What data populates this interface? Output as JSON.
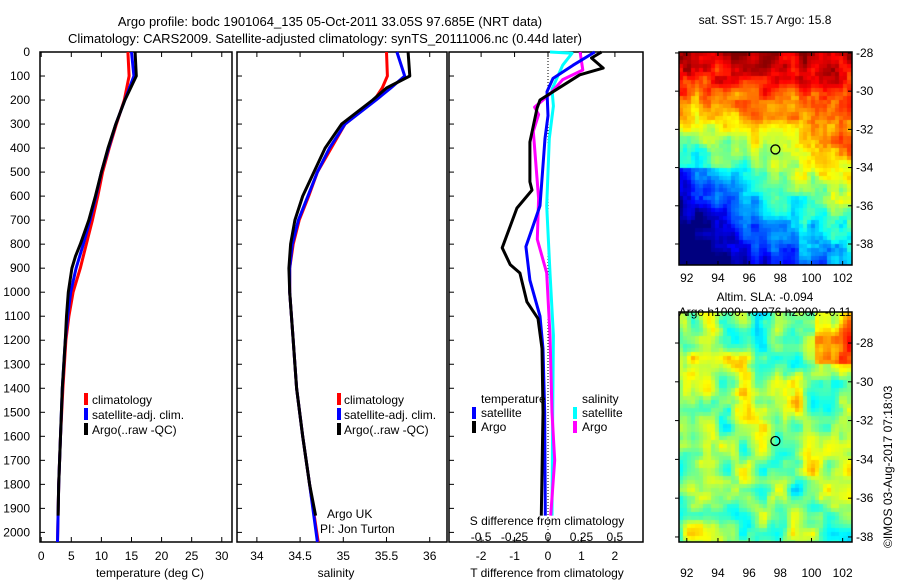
{
  "title": {
    "line1": "Argo profile: bodc 1901064_135 05-Oct-2011 33.05S 97.685E (NRT data)",
    "line2": "Climatology: CARS2009. Satellite-adjusted climatology: synTS_20111006.nc (0.44d later)"
  },
  "credit": "©IMOS 03-Aug-2017 07:18:03",
  "colors": {
    "climatology": "#ff0000",
    "satellite": "#0000ff",
    "argo": "#000000",
    "sal_satellite": "#00ffff",
    "sal_argo": "#ff00ff"
  },
  "chart_data": [
    {
      "type": "line",
      "panel": "temperature",
      "xlabel": "temperature (deg C)",
      "xticks": [
        0,
        5,
        10,
        15,
        20,
        25,
        30
      ],
      "xlim": [
        -0.2,
        31.7
      ],
      "ylabel": "depth",
      "yticks": [
        0,
        100,
        200,
        300,
        400,
        500,
        600,
        700,
        800,
        900,
        1000,
        1100,
        1200,
        1300,
        1400,
        1500,
        1600,
        1700,
        1800,
        1900,
        2000
      ],
      "ylim": [
        2040,
        0
      ],
      "legend": [
        "climatology",
        "satellite-adj. clim.",
        "Argo(..raw -QC)"
      ],
      "series": [
        {
          "name": "climatology",
          "depth": [
            0,
            100,
            200,
            300,
            400,
            500,
            600,
            700,
            800,
            900,
            1000,
            1100,
            1200,
            1400,
            1600,
            1800,
            2040
          ],
          "values": [
            14.4,
            14.6,
            13.8,
            12.5,
            11.3,
            10.2,
            9.4,
            8.5,
            7.5,
            6.5,
            5.3,
            4.6,
            4.1,
            3.6,
            3.2,
            2.9,
            2.7
          ]
        },
        {
          "name": "satellite-adj. clim.",
          "depth": [
            0,
            100,
            200,
            300,
            400,
            500,
            600,
            700,
            800,
            900,
            1000,
            1100,
            1200,
            1400,
            1600,
            1800,
            2040
          ],
          "values": [
            15.0,
            15.4,
            13.9,
            12.4,
            11.2,
            10.0,
            9.1,
            8.1,
            7.0,
            5.8,
            4.9,
            4.4,
            4.0,
            3.5,
            3.2,
            2.9,
            2.7
          ]
        },
        {
          "name": "Argo(..raw -QC)",
          "depth": [
            0,
            100,
            200,
            300,
            400,
            500,
            600,
            700,
            800,
            850,
            900,
            1000,
            1100,
            1200,
            1400,
            1600,
            1800,
            1930
          ],
          "values": [
            15.6,
            15.8,
            13.9,
            12.4,
            11.1,
            10.0,
            9.0,
            7.9,
            6.5,
            5.7,
            5.1,
            4.5,
            4.2,
            4.0,
            3.5,
            3.2,
            2.9,
            2.8
          ]
        }
      ]
    },
    {
      "type": "line",
      "panel": "salinity",
      "xlabel": "salinity",
      "xticks": [
        34,
        34.5,
        35,
        35.5,
        36
      ],
      "xlim": [
        33.77,
        36.2
      ],
      "ylim": [
        2040,
        0
      ],
      "legend": [
        "climatology",
        "satellite-adj. clim.",
        "Argo(..raw -QC)"
      ],
      "annotation": [
        "Argo UK",
        "PI: Jon Turton"
      ],
      "series": [
        {
          "name": "climatology",
          "depth": [
            0,
            100,
            150,
            200,
            300,
            400,
            500,
            600,
            700,
            800,
            900,
            1000,
            1200,
            1400,
            1600,
            1800,
            2040
          ],
          "values": [
            35.5,
            35.51,
            35.45,
            35.36,
            35.02,
            34.86,
            34.7,
            34.6,
            34.49,
            34.42,
            34.38,
            34.38,
            34.42,
            34.46,
            34.53,
            34.61,
            34.71
          ]
        },
        {
          "name": "satellite-adj. clim.",
          "depth": [
            0,
            100,
            150,
            200,
            300,
            400,
            500,
            600,
            700,
            800,
            900,
            1000,
            1200,
            1400,
            1600,
            1800,
            2040
          ],
          "values": [
            35.62,
            35.71,
            35.55,
            35.38,
            35.02,
            34.84,
            34.7,
            34.59,
            34.48,
            34.41,
            34.38,
            34.38,
            34.42,
            34.46,
            34.53,
            34.61,
            34.7
          ]
        },
        {
          "name": "Argo(..raw -QC)",
          "depth": [
            0,
            100,
            150,
            200,
            300,
            400,
            500,
            600,
            700,
            800,
            900,
            1000,
            1200,
            1400,
            1600,
            1800,
            1930
          ],
          "values": [
            35.75,
            35.77,
            35.5,
            35.34,
            34.98,
            34.79,
            34.66,
            34.53,
            34.44,
            34.39,
            34.37,
            34.38,
            34.42,
            34.46,
            34.53,
            34.61,
            34.68
          ]
        }
      ]
    },
    {
      "type": "line",
      "panel": "difference",
      "xlabel": "T difference from climatology",
      "xticks": [
        -2,
        -1,
        0,
        1,
        2
      ],
      "xlim": [
        -2.96,
        2.84
      ],
      "x2label": "S difference from climatology",
      "x2ticks": [
        "-0.5",
        "-0.25",
        "0",
        "0.25",
        "0.5"
      ],
      "x2ticks_values": [
        -0.5,
        -0.25,
        0,
        0.25,
        0.5
      ],
      "ylim": [
        2040,
        0
      ],
      "legend": {
        "temperature_title": "temperature",
        "salinity_title": "salinity",
        "items": [
          "satellite",
          "Argo",
          "satellite",
          "Argo"
        ]
      },
      "series": [
        {
          "name": "T satellite",
          "variable": "T",
          "depth": [
            0,
            55,
            110,
            165,
            265,
            360,
            640,
            810,
            950,
            1100,
            1235,
            1500,
            1930
          ],
          "values": [
            1.4,
            0.75,
            0.15,
            -0.03,
            0,
            -0.09,
            -0.24,
            -0.66,
            -0.54,
            -0.24,
            -0.15,
            -0.1,
            -0.08
          ]
        },
        {
          "name": "T Argo",
          "variable": "T",
          "depth": [
            0,
            25,
            67,
            95,
            155,
            200,
            235,
            375,
            540,
            575,
            650,
            815,
            885,
            920,
            1040,
            1110,
            1235,
            1500,
            1930
          ],
          "values": [
            1.6,
            1.3,
            1.65,
            0.95,
            0.27,
            -0.24,
            -0.33,
            -0.54,
            -0.54,
            -0.48,
            -0.93,
            -1.37,
            -1.13,
            -0.84,
            -0.63,
            -0.3,
            -0.18,
            -0.15,
            -0.2
          ]
        },
        {
          "name": "S satellite",
          "variable": "S",
          "depth": [
            0,
            0,
            5,
            55,
            155,
            225,
            360,
            640,
            920,
            1180,
            1500,
            1930
          ],
          "values": [
            0.015,
            0.015,
            0.18,
            0.11,
            0.03,
            0.04,
            0.01,
            -0.01,
            0.015,
            0.04,
            0.035,
            0.03
          ]
        },
        {
          "name": "S Argo",
          "variable": "S",
          "depth": [
            0,
            75,
            115,
            175,
            230,
            260,
            330,
            610,
            780,
            920,
            1180,
            1500,
            1700,
            1930
          ],
          "values": [
            0.24,
            0.26,
            0.11,
            0.015,
            -0.1,
            -0.07,
            -0.11,
            -0.07,
            -0.08,
            -0.01,
            0.015,
            0.03,
            0.05,
            0.02
          ]
        }
      ]
    },
    {
      "type": "heatmap",
      "panel": "sst-map",
      "title": "sat. SST: 15.7 Argo: 15.8",
      "xticks": [
        92,
        94,
        96,
        98,
        100,
        102
      ],
      "yticks": [
        -28,
        -30,
        -32,
        -34,
        -36,
        -38
      ],
      "xlim": [
        91.5,
        102.6
      ],
      "ylim": [
        -39.1,
        -27.95
      ],
      "marker": {
        "lon": 97.685,
        "lat": -33.05
      }
    },
    {
      "type": "heatmap",
      "panel": "sla-map",
      "title_line1": "Altim. SLA: -0.094",
      "title_line2": "Argo h1000: -0.076 h2000: -0.11",
      "xticks": [
        92,
        94,
        96,
        98,
        100,
        102
      ],
      "yticks": [
        -28,
        -30,
        -32,
        -34,
        -36,
        -38
      ],
      "xlim": [
        91.5,
        102.6
      ],
      "ylim": [
        -38.26,
        -26.4
      ],
      "marker": {
        "lon": 97.685,
        "lat": -33.05
      }
    }
  ]
}
